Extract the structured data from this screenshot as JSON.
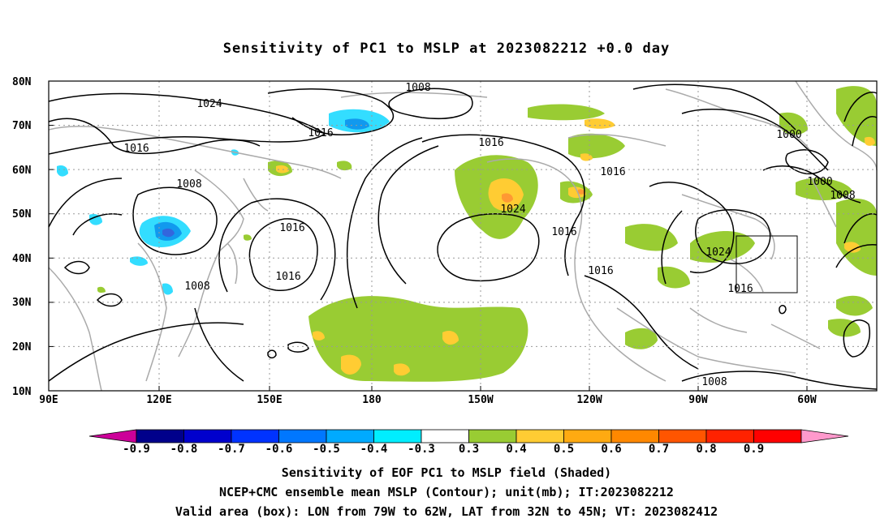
{
  "title": "Sensitivity of PC1 to MSLP at 2023082212 +0.0 day",
  "map": {
    "lat_ticks": [
      "80N",
      "70N",
      "60N",
      "50N",
      "40N",
      "30N",
      "20N",
      "10N"
    ],
    "lon_ticks": [
      "90E",
      "120E",
      "150E",
      "180",
      "150W",
      "120W",
      "90W",
      "60W"
    ],
    "contour_labels": [
      {
        "text": "1008"
      },
      {
        "text": "1024"
      },
      {
        "text": "1016"
      },
      {
        "text": "1016"
      },
      {
        "text": "1016"
      },
      {
        "text": "1008"
      },
      {
        "text": "1016"
      },
      {
        "text": "1016"
      },
      {
        "text": "1024"
      },
      {
        "text": "1016"
      },
      {
        "text": "1016"
      },
      {
        "text": "1008"
      },
      {
        "text": "1000"
      },
      {
        "text": "1000"
      },
      {
        "text": "1008"
      },
      {
        "text": "1024"
      },
      {
        "text": "1016"
      },
      {
        "text": "1016"
      },
      {
        "text": "1008"
      }
    ],
    "colors": {
      "positive_low": "#99cc33",
      "positive_mid": "#ffcc33",
      "positive_high": "#ff9933",
      "negative_low": "#33ddff",
      "negative_mid": "#1199ee",
      "negative_high": "#3366dd",
      "coast": "#aaaaaa",
      "contour": "#000000"
    }
  },
  "colorbar": {
    "labels": [
      "-0.9",
      "-0.8",
      "-0.7",
      "-0.6",
      "-0.5",
      "-0.4",
      "-0.3",
      "0.3",
      "0.4",
      "0.5",
      "0.6",
      "0.7",
      "0.8",
      "0.9"
    ],
    "colors": [
      "#cc0099",
      "#00008b",
      "#0000cd",
      "#0033ff",
      "#0077ff",
      "#00aaff",
      "#00eeff",
      "#ffffff",
      "#99cc33",
      "#ffcc33",
      "#ffaa11",
      "#ff8800",
      "#ff5500",
      "#ff2200",
      "#ff0000",
      "#ff99cc"
    ]
  },
  "captions": [
    "Sensitivity of EOF PC1 to MSLP field (Shaded)",
    "NCEP+CMC ensemble mean MSLP (Contour); unit(mb); IT:2023082212",
    "Valid area (box): LON from 79W to 62W, LAT from 32N to 45N; VT: 2023082412"
  ]
}
